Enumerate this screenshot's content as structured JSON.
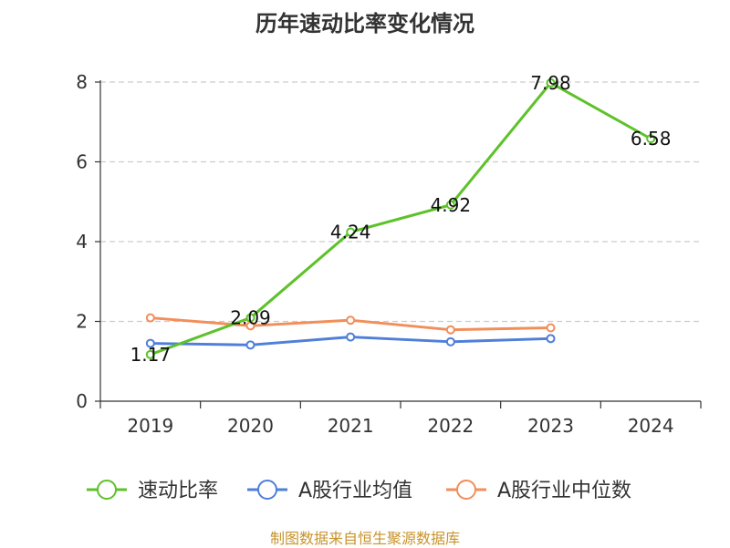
{
  "chart_data": {
    "type": "line",
    "title": "历年速动比率变化情况",
    "categories": [
      "2019",
      "2020",
      "2021",
      "2022",
      "2023",
      "2024"
    ],
    "ylim": [
      0,
      8
    ],
    "yticks": [
      0,
      2,
      4,
      6,
      8
    ],
    "grid": true,
    "legend_position": "bottom",
    "series": [
      {
        "name": "速动比率",
        "color": "#5dc22a",
        "values": [
          1.17,
          2.09,
          4.24,
          4.92,
          7.98,
          6.58
        ],
        "labels": [
          "1.17",
          "2.09",
          "4.24",
          "4.92",
          "7.98",
          "6.58"
        ]
      },
      {
        "name": "A股行业均值",
        "color": "#4f7fd8",
        "values": [
          1.45,
          1.41,
          1.61,
          1.49,
          1.57,
          null
        ]
      },
      {
        "name": "A股行业中位数",
        "color": "#f28e5a",
        "values": [
          2.09,
          1.89,
          2.03,
          1.79,
          1.84,
          null
        ]
      }
    ],
    "source": "制图数据来自恒生聚源数据库"
  }
}
